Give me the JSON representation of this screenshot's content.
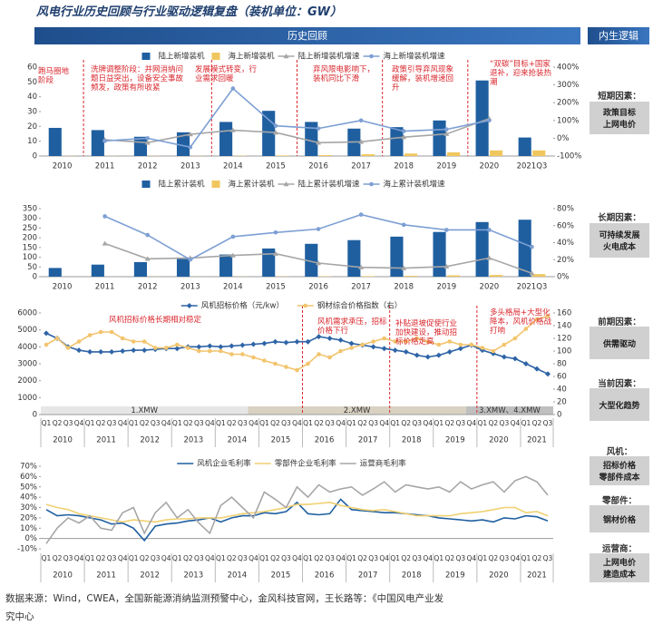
{
  "title": "风电行业历史回顾与行业驱动逻辑复盘（装机单位：GW）",
  "section_header": "历史回顾",
  "side_header": "内生逻辑",
  "side_factors": [
    {
      "label": "短期因素：",
      "box": [
        "政策目标",
        "上网电价"
      ]
    },
    {
      "label": "长期因素：",
      "box": [
        "可持续发展",
        "火电成本"
      ]
    },
    {
      "label": "前期因素：",
      "box": [
        "供需驱动"
      ]
    },
    {
      "label": "当前因素：",
      "box": [
        "大型化趋势"
      ]
    },
    {
      "label": "风机：",
      "box": [
        "招标价格",
        "零部件成本"
      ]
    },
    {
      "label": "零部件：",
      "box": [
        "钢材价格"
      ]
    },
    {
      "label": "运营商：",
      "box": [
        "上网电价",
        "建造成本"
      ]
    }
  ],
  "source": [
    "数据来源：Wind，CWEA，全国新能源消纳监测预警中心，金风科技官网，王长路等：《中国风电产业发",
    "究中心"
  ],
  "chart_data": [
    {
      "type": "bar",
      "categories": [
        "2010",
        "2011",
        "2012",
        "2013",
        "2014",
        "2015",
        "2016",
        "2017",
        "2018",
        "2019",
        "2020",
        "2021Q3"
      ],
      "series": [
        {
          "name": "陆上新增装机",
          "type": "bar",
          "color": "#1f5fa0",
          "values": [
            19,
            17.5,
            13,
            16,
            23,
            30.5,
            23,
            18.5,
            19.5,
            24,
            51,
            12.5
          ]
        },
        {
          "name": "海上新增装机",
          "type": "bar",
          "color": "#f0c75e",
          "values": [
            0.1,
            0.1,
            0.1,
            0.1,
            0.2,
            0.4,
            0.6,
            1.2,
            1.7,
            2.5,
            3.8,
            3.8
          ]
        },
        {
          "name": "陆上新增装机增速",
          "type": "line",
          "axis": "y2",
          "marker": "triangle",
          "color": "#a6a6a6",
          "values": [
            null,
            -8,
            -25,
            22,
            45,
            32,
            -25,
            -20,
            6,
            24,
            110,
            null
          ]
        },
        {
          "name": "海上新增装机增速",
          "type": "line",
          "axis": "y2",
          "marker": "circle",
          "color": "#7d9fd4",
          "values": [
            null,
            -15,
            0,
            -50,
            280,
            70,
            55,
            100,
            40,
            50,
            100,
            null
          ]
        }
      ],
      "ylim": [
        0,
        60
      ],
      "yticks": [
        0,
        10,
        20,
        30,
        40,
        50,
        60
      ],
      "y2lim": [
        -100,
        400
      ],
      "y2ticks": [
        {
          "value": -100,
          "label": "-100%"
        },
        {
          "value": 0,
          "label": "0%"
        },
        {
          "value": 100,
          "label": "100%"
        },
        {
          "value": 200,
          "label": "200%"
        },
        {
          "value": 300,
          "label": "300%"
        },
        {
          "value": 400,
          "label": "400%"
        }
      ],
      "grid": false,
      "annotations": [
        "跑马圈地阶段",
        "洗牌调整阶段：并网消纳问题日益突出，设备安全事故频发，政策有所收紧",
        "发展模式转变，行业需求回暖",
        "弃风限电影响下，装机同比下滑",
        "政策引导弃风现象缓解，装机增速回升",
        "“双碳”目标+国家退补，迎来抢装热潮"
      ]
    },
    {
      "type": "bar",
      "categories": [
        "2010",
        "2011",
        "2012",
        "2013",
        "2014",
        "2015",
        "2016",
        "2017",
        "2018",
        "2019",
        "2020",
        "2021Q3"
      ],
      "series": [
        {
          "name": "陆上累计装机",
          "type": "bar",
          "color": "#1f5fa0",
          "values": [
            44.7,
            62,
            75,
            91,
            114,
            145,
            169,
            188,
            206,
            230,
            281,
            293
          ]
        },
        {
          "name": "海上累计装机",
          "type": "bar",
          "color": "#f0c75e",
          "values": [
            0.1,
            0.2,
            0.4,
            0.4,
            0.7,
            1,
            1.6,
            2.8,
            4.4,
            7,
            9,
            13
          ]
        },
        {
          "name": "陆上累计装机增速",
          "type": "line",
          "axis": "y2",
          "marker": "triangle",
          "color": "#a6a6a6",
          "values": [
            null,
            39,
            21,
            22,
            25,
            27,
            16,
            11,
            10,
            12,
            22,
            4
          ]
        },
        {
          "name": "海上累计装机增速",
          "type": "line",
          "axis": "y2",
          "marker": "circle",
          "color": "#7d9fd4",
          "values": [
            null,
            71,
            49,
            20,
            47,
            52,
            56,
            73,
            61,
            55,
            55,
            35
          ]
        }
      ],
      "ylim": [
        0,
        350
      ],
      "yticks": [
        0,
        50,
        100,
        150,
        200,
        250,
        300,
        350
      ],
      "y2lim": [
        0,
        80
      ],
      "y2ticks": [
        {
          "value": 0,
          "label": "0%"
        },
        {
          "value": 20,
          "label": "20%"
        },
        {
          "value": 40,
          "label": "40%"
        },
        {
          "value": 60,
          "label": "60%"
        },
        {
          "value": 80,
          "label": "80%"
        }
      ],
      "grid": false
    },
    {
      "type": "line",
      "categories": [
        "Q1",
        "Q2",
        "Q3",
        "Q4",
        "Q1",
        "Q2",
        "Q3",
        "Q4",
        "Q1",
        "Q2",
        "Q3",
        "Q4",
        "Q1",
        "Q2",
        "Q3",
        "Q4",
        "Q1",
        "Q2",
        "Q3",
        "Q4",
        "Q1",
        "Q2",
        "Q3",
        "Q4",
        "Q1",
        "Q2",
        "Q3",
        "Q4",
        "Q1",
        "Q2",
        "Q3",
        "Q4",
        "Q1",
        "Q2",
        "Q3",
        "Q4",
        "Q1",
        "Q2",
        "Q3",
        "Q4",
        "Q1",
        "Q2",
        "Q3",
        "Q4",
        "Q1",
        "Q2",
        "Q3"
      ],
      "year_groups": [
        "2010",
        "2011",
        "2012",
        "2013",
        "2014",
        "2015",
        "2016",
        "2017",
        "2018",
        "2019",
        "2020",
        "2021"
      ],
      "series": [
        {
          "name": "风机招标价格（元/kw）",
          "type": "line",
          "marker": "diamond",
          "color": "#2e64a6",
          "values": [
            4800,
            4500,
            4000,
            3800,
            3700,
            3700,
            3700,
            3750,
            3800,
            3800,
            3850,
            3900,
            3900,
            4000,
            4000,
            4050,
            4000,
            4050,
            4100,
            4150,
            4200,
            4300,
            4250,
            4300,
            4300,
            4600,
            4500,
            4400,
            4200,
            4100,
            4000,
            3900,
            3800,
            3700,
            3500,
            3400,
            3500,
            3700,
            3900,
            4100,
            3800,
            3600,
            3400,
            3300,
            3000,
            2700,
            2400
          ]
        },
        {
          "name": "钢材综合价格指数（右）",
          "type": "line",
          "axis": "y2",
          "marker": "circle",
          "color": "#f2c46d",
          "values": [
            110,
            120,
            105,
            115,
            125,
            130,
            130,
            120,
            115,
            115,
            105,
            105,
            110,
            105,
            100,
            100,
            100,
            95,
            95,
            90,
            85,
            80,
            75,
            70,
            80,
            95,
            90,
            100,
            105,
            110,
            115,
            120,
            115,
            115,
            120,
            115,
            110,
            115,
            110,
            110,
            105,
            100,
            110,
            120,
            135,
            150,
            155
          ]
        }
      ],
      "ylim": [
        0,
        6000
      ],
      "yticks": [
        0,
        1000,
        2000,
        3000,
        4000,
        5000,
        6000
      ],
      "y2lim": [
        0,
        160
      ],
      "y2ticks": [
        0,
        20,
        40,
        60,
        80,
        100,
        120,
        140,
        160
      ],
      "grid": false,
      "size_bands": [
        "1.XMW",
        "2.XMW",
        "3.XMW、4.XMW"
      ],
      "annotations": [
        "风机招标价格长期相对稳定",
        "风机需求承压，招标价格下行",
        "补贴退坡促使行业加快建设，推动招标价格走高",
        "多头格局+大型化降本，风机价格战打响"
      ]
    },
    {
      "type": "line",
      "categories": [
        "Q1",
        "Q2",
        "Q3",
        "Q4",
        "Q1",
        "Q2",
        "Q3",
        "Q4",
        "Q1",
        "Q2",
        "Q3",
        "Q4",
        "Q1",
        "Q2",
        "Q3",
        "Q4",
        "Q1",
        "Q2",
        "Q3",
        "Q4",
        "Q1",
        "Q2",
        "Q3",
        "Q4",
        "Q1",
        "Q2",
        "Q3",
        "Q4",
        "Q1",
        "Q2",
        "Q3",
        "Q4",
        "Q1",
        "Q2",
        "Q3",
        "Q4",
        "Q1",
        "Q2",
        "Q3",
        "Q4",
        "Q1",
        "Q2",
        "Q3",
        "Q4",
        "Q1",
        "Q2",
        "Q3"
      ],
      "year_groups": [
        "2010",
        "2011",
        "2012",
        "2013",
        "2014",
        "2015",
        "2016",
        "2017",
        "2018",
        "2019",
        "2020",
        "2021"
      ],
      "series": [
        {
          "name": "风机企业毛利率",
          "type": "line",
          "marker": "none",
          "color": "#1f5fa0",
          "values": [
            28,
            22,
            23,
            22,
            20,
            18,
            14,
            15,
            10,
            -2,
            12,
            14,
            15,
            17,
            18,
            20,
            16,
            20,
            22,
            22,
            25,
            24,
            26,
            35,
            24,
            23,
            24,
            38,
            28,
            27,
            26,
            25,
            25,
            24,
            23,
            22,
            20,
            19,
            18,
            17,
            18,
            16,
            20,
            19,
            22,
            21,
            17
          ]
        },
        {
          "name": "零部件企业毛利率",
          "type": "line",
          "marker": "none",
          "color": "#f0d070",
          "values": [
            33,
            30,
            28,
            24,
            22,
            20,
            18,
            16,
            18,
            17,
            16,
            18,
            19,
            19,
            20,
            20,
            20,
            22,
            24,
            25,
            26,
            28,
            30,
            33,
            33,
            34,
            35,
            32,
            30,
            28,
            27,
            28,
            26,
            24,
            22,
            22,
            22,
            22,
            24,
            25,
            26,
            28,
            30,
            30,
            25,
            26,
            22
          ]
        },
        {
          "name": "运营商毛利率",
          "type": "line",
          "marker": "none",
          "color": "#a6a6a6",
          "values": [
            -5,
            10,
            20,
            15,
            22,
            10,
            8,
            25,
            30,
            5,
            25,
            35,
            20,
            28,
            15,
            5,
            32,
            40,
            30,
            20,
            45,
            38,
            30,
            50,
            40,
            52,
            45,
            48,
            50,
            42,
            48,
            55,
            45,
            52,
            50,
            48,
            50,
            45,
            55,
            48,
            52,
            55,
            45,
            56,
            60,
            55,
            42
          ]
        }
      ],
      "ylim": [
        -10,
        70
      ],
      "yticks": [
        {
          "value": -10,
          "label": "-10%"
        },
        {
          "value": 0,
          "label": "0%"
        },
        {
          "value": 10,
          "label": "10%"
        },
        {
          "value": 20,
          "label": "20%"
        },
        {
          "value": 30,
          "label": "30%"
        },
        {
          "value": 40,
          "label": "40%"
        },
        {
          "value": 50,
          "label": "50%"
        },
        {
          "value": 60,
          "label": "60%"
        },
        {
          "value": 70,
          "label": "70%"
        }
      ],
      "grid": false
    }
  ]
}
